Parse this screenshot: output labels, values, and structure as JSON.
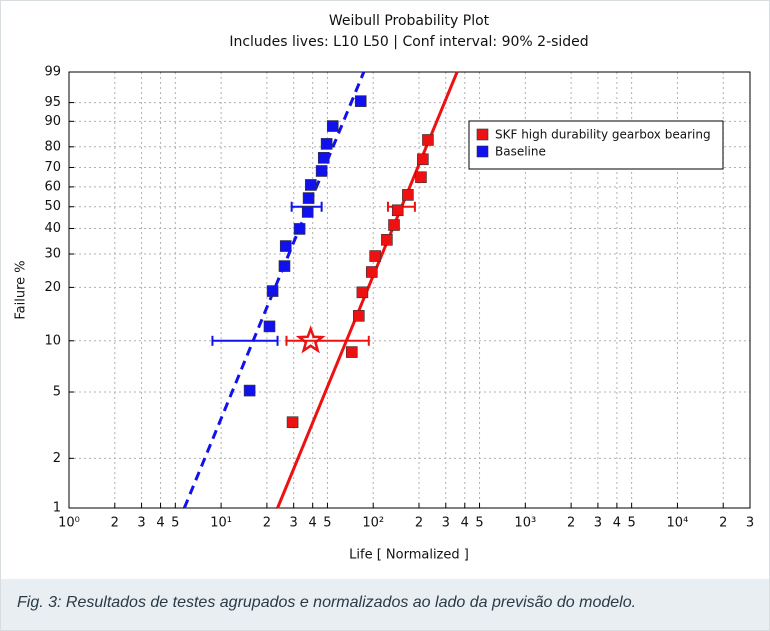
{
  "chart_data": {
    "type": "weibull",
    "title": "Weibull Probability Plot",
    "subtitle": "Includes lives: L10 L50 | Conf interval: 90% 2-sided",
    "x_label": "Life [ Normalized ]",
    "y_label": "Failure %",
    "xscale": "log",
    "yscale": "weibull",
    "grid": true,
    "legend": "upper right",
    "xlim": [
      1,
      30000
    ],
    "xticks": [
      {
        "value": 1,
        "label": "10⁰"
      },
      2,
      3,
      4,
      5,
      {
        "value": 10,
        "label": "10¹"
      },
      {
        "value": 20,
        "label": "2"
      },
      {
        "value": 30,
        "label": "3"
      },
      {
        "value": 40,
        "label": "4"
      },
      {
        "value": 50,
        "label": "5"
      },
      {
        "value": 100,
        "label": "10²"
      },
      {
        "value": 200,
        "label": "2"
      },
      {
        "value": 300,
        "label": "3"
      },
      {
        "value": 400,
        "label": "4"
      },
      {
        "value": 500,
        "label": "5"
      },
      {
        "value": 1000,
        "label": "10³"
      },
      {
        "value": 2000,
        "label": "2"
      },
      {
        "value": 3000,
        "label": "3"
      },
      {
        "value": 4000,
        "label": "4"
      },
      {
        "value": 5000,
        "label": "5"
      },
      {
        "value": 10000,
        "label": "10⁴"
      },
      {
        "value": 20000,
        "label": "2"
      },
      {
        "value": 30000,
        "label": "3"
      }
    ],
    "ylim": [
      1,
      99
    ],
    "yticks": [
      1,
      2,
      5,
      10,
      20,
      30,
      40,
      50,
      60,
      70,
      80,
      90,
      95,
      99
    ],
    "series": [
      {
        "name": "SKF high durability gearbox bearing",
        "color": "#ee1111",
        "x": [
          29.5,
          72.3,
          80.4,
          84.9,
          97.9,
          103,
          123,
          137,
          145,
          169,
          206,
          212,
          229
        ],
        "values": [
          3.3,
          8.6,
          13.9,
          18.8,
          24.2,
          29.3,
          35.3,
          41.5,
          48.3,
          55.9,
          65.0,
          74.1,
          83.0
        ],
        "fit": {
          "x": [
            23.5,
            356
          ],
          "values": [
            1,
            99
          ]
        },
        "intervals": [
          {
            "y": 10,
            "x": [
              26.9,
              93.5
            ]
          },
          {
            "y": 50,
            "x": [
              125,
              188
            ]
          }
        ],
        "marker": {
          "x": 38.8,
          "y": 10
        }
      },
      {
        "name": "Baseline",
        "color": "#1111ee",
        "x": [
          15.4,
          20.8,
          21.8,
          26.1,
          26.6,
          32.8,
          37.1,
          37.6,
          38.9,
          45.8,
          47.3,
          49.4,
          54.2,
          82.8
        ],
        "values": [
          5.1,
          12.1,
          19.1,
          26.0,
          32.9,
          39.8,
          47.5,
          54.3,
          61.0,
          68.2,
          74.8,
          81.3,
          88.4,
          95.3
        ],
        "fit": {
          "x": [
            5.73,
            86.7
          ],
          "values": [
            1,
            99
          ],
          "dashed": true
        },
        "intervals": [
          {
            "y": 10,
            "x": [
              8.77,
              23.5
            ]
          },
          {
            "y": 50,
            "x": [
              29.1,
              45.8
            ]
          }
        ]
      }
    ]
  },
  "caption": "Fig. 3: Resultados de testes agrupados e normalizados ao lado da previsão do modelo."
}
